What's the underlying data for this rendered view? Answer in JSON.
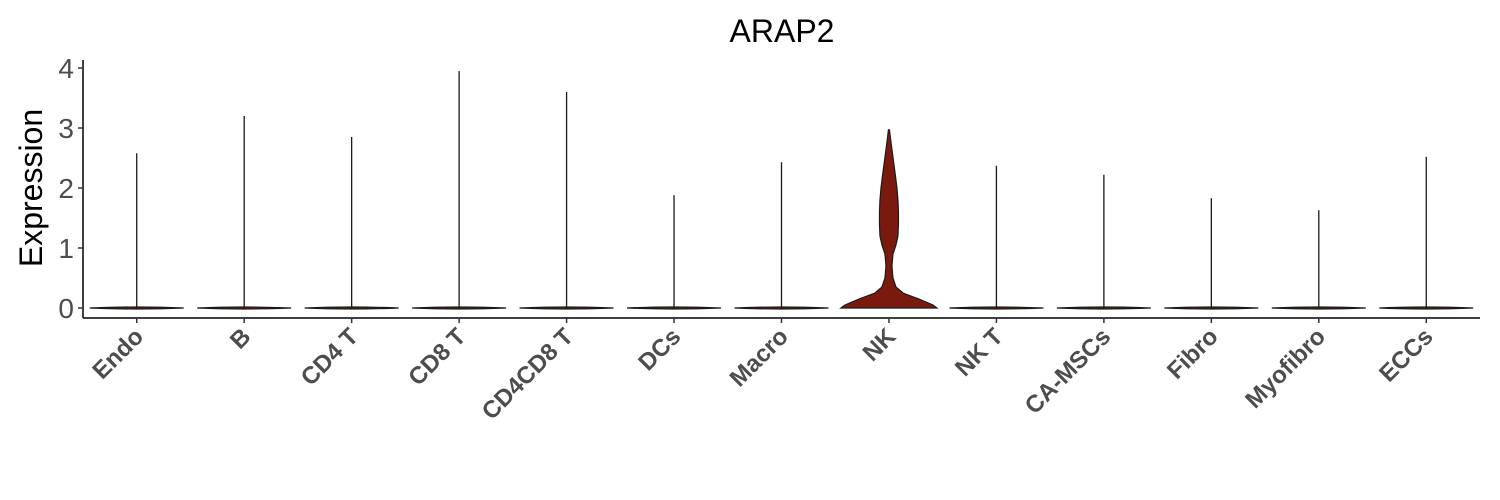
{
  "chart_data": {
    "type": "violin",
    "title": "ARAP2",
    "xlabel": "",
    "ylabel": "Expression",
    "ylim": [
      0,
      4
    ],
    "yticks": [
      "0",
      "1",
      "2",
      "3",
      "4"
    ],
    "categories": [
      "Endo",
      "B",
      "CD4 T",
      "CD8 T",
      "CD4CD8 T",
      "DCs",
      "Macro",
      "NK",
      "NK T",
      "CA-MSCs",
      "Fibro",
      "Myofibro",
      "ECCs"
    ],
    "max_values": [
      2.58,
      3.2,
      2.85,
      3.95,
      3.6,
      1.88,
      2.43,
      2.97,
      2.37,
      2.22,
      1.83,
      1.63,
      2.52
    ],
    "fill_color": "#7a1a0f",
    "highlight_category": "NK"
  }
}
